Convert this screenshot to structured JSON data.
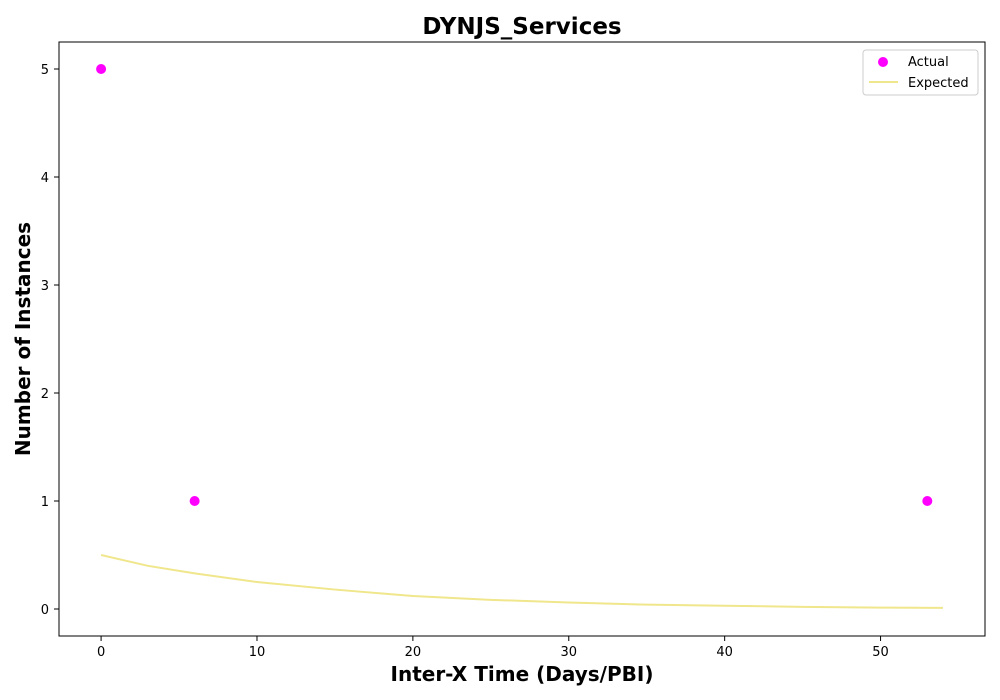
{
  "chart_data": {
    "type": "scatter",
    "title": "DYNJS_Services",
    "xlabel": "Inter-X Time (Days/PBI)",
    "ylabel": "Number of Instances",
    "xlim": [
      -2.7,
      56.7
    ],
    "ylim": [
      -0.25,
      5.25
    ],
    "xticks": [
      0,
      10,
      20,
      30,
      40,
      50
    ],
    "yticks": [
      0,
      1,
      2,
      3,
      4,
      5
    ],
    "grid": false,
    "legend_position": "top-right",
    "series": [
      {
        "name": "Actual",
        "kind": "scatter",
        "color": "#ff00ff",
        "points": [
          {
            "x": 0,
            "y": 5
          },
          {
            "x": 6,
            "y": 1
          },
          {
            "x": 53,
            "y": 1
          }
        ]
      },
      {
        "name": "Expected",
        "kind": "line",
        "color": "#f0e68c",
        "points": [
          {
            "x": 0,
            "y": 0.5
          },
          {
            "x": 3,
            "y": 0.4
          },
          {
            "x": 6,
            "y": 0.33
          },
          {
            "x": 10,
            "y": 0.25
          },
          {
            "x": 15,
            "y": 0.18
          },
          {
            "x": 20,
            "y": 0.12
          },
          {
            "x": 25,
            "y": 0.085
          },
          {
            "x": 30,
            "y": 0.06
          },
          {
            "x": 35,
            "y": 0.04
          },
          {
            "x": 40,
            "y": 0.03
          },
          {
            "x": 45,
            "y": 0.02
          },
          {
            "x": 50,
            "y": 0.013
          },
          {
            "x": 54,
            "y": 0.01
          }
        ]
      }
    ]
  }
}
